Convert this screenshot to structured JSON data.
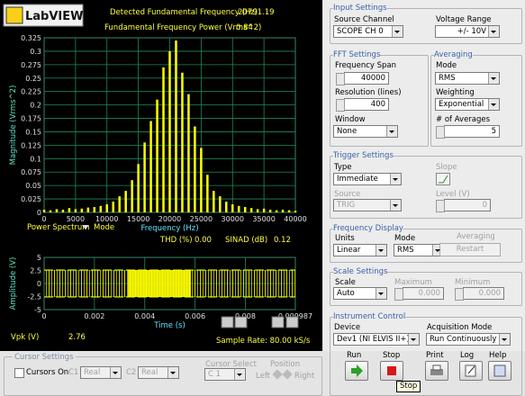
{
  "header": {
    "logo": "LabVIEW",
    "fundamental_frequency_label": "Detected Fundamental Frequency (Hz)",
    "fundamental_frequency": "20791.19",
    "fundamental_power_label": "Fundamental Frequency Power (Vrms^2)",
    "fundamental_power": "0.84"
  },
  "spectrum": {
    "type": "bar",
    "y_label": "Magnitude (Vrms^2)",
    "x_label": "Frequency (Hz)",
    "mode_value": "Power Spectrum",
    "mode_caption": "Mode",
    "color": "#ffff00",
    "grid": true,
    "x": [
      0,
      1000,
      2000,
      3000,
      4000,
      5000,
      6000,
      7000,
      8000,
      9000,
      10000,
      11000,
      12000,
      13000,
      14000,
      15000,
      16000,
      17000,
      18000,
      19000,
      20000,
      21000,
      22000,
      23000,
      24000,
      25000,
      26000,
      27000,
      28000,
      29000,
      30000,
      31000,
      32000,
      33000,
      34000,
      35000,
      36000,
      37000,
      38000,
      39000,
      40000
    ],
    "values": [
      0.005,
      0.004,
      0.006,
      0.005,
      0.008,
      0.006,
      0.007,
      0.009,
      0.01,
      0.012,
      0.015,
      0.02,
      0.03,
      0.04,
      0.06,
      0.09,
      0.13,
      0.17,
      0.21,
      0.27,
      0.3,
      0.32,
      0.26,
      0.22,
      0.16,
      0.12,
      0.07,
      0.04,
      0.03,
      0.02,
      0.015,
      0.012,
      0.01,
      0.008,
      0.006,
      0.007,
      0.005,
      0.004,
      0.005,
      0.004,
      0.003
    ],
    "xlim": [
      0,
      40000
    ],
    "ylim": [
      0,
      0.325
    ],
    "xticks": [
      0,
      5000,
      10000,
      15000,
      20000,
      25000,
      30000,
      35000,
      40000
    ],
    "yticks": [
      0,
      0.025,
      0.05,
      0.075,
      0.1,
      0.125,
      0.15,
      0.175,
      0.2,
      0.225,
      0.25,
      0.275,
      0.3,
      0.325
    ]
  },
  "distortion": {
    "thd_label": "THD (%)",
    "thd": "0.00",
    "sinad_label": "SINAD (dB)",
    "sinad": "0.12"
  },
  "time_plot": {
    "y_label": "Amplitude (V)",
    "x_label": "Time (s)",
    "grid": true,
    "xlim": [
      0,
      0.009987
    ],
    "ylim": [
      -5,
      5
    ],
    "xticks": [
      0,
      0.002,
      0.004,
      0.006,
      0.008,
      0.009987
    ],
    "yticks": [
      -5,
      -2.5,
      0,
      2.5,
      5
    ]
  },
  "vpk_label": "Vpk (V)",
  "vpk": "2.76",
  "sample_rate": "Sample Rate: 80.00 kS/s",
  "cursor_settings": {
    "title": "Cursor Settings",
    "cursors_on": "Cursors On",
    "c1_label": "C1",
    "c1": "Real",
    "c2_label": "C2",
    "c2": "Real",
    "cursor_select_label": "Cursor Select",
    "cursor_select": "C 1",
    "position_label": "Position",
    "left": "Left",
    "right": "Right"
  },
  "input_settings": {
    "title": "Input Settings",
    "source_channel_label": "Source Channel",
    "source_channel": "SCOPE CH 0",
    "voltage_range_label": "Voltage Range",
    "voltage_range": "+/- 10V"
  },
  "fft_settings": {
    "title": "FFT Settings",
    "frequency_span_label": "Frequency Span",
    "frequency_span": "40000",
    "resolution_label": "Resolution (lines)",
    "resolution": "400",
    "window_label": "Window",
    "window": "None"
  },
  "averaging": {
    "title": "Averaging",
    "mode_label": "Mode",
    "mode": "RMS",
    "weighting_label": "Weighting",
    "weighting": "Exponential",
    "averages_label": "# of Averages",
    "averages": "5"
  },
  "trigger_settings": {
    "title": "Trigger Settings",
    "type_label": "Type",
    "type": "Immediate",
    "slope_label": "Slope",
    "source_label": "Source",
    "source": "TRIG",
    "level_label": "Level (V)",
    "level": "0"
  },
  "frequency_display": {
    "title": "Frequency Display",
    "units_label": "Units",
    "units": "Linear",
    "mode_label": "Mode",
    "mode": "RMS",
    "averaging_label": "Averaging",
    "restart": "Restart"
  },
  "scale_settings": {
    "title": "Scale Settings",
    "scale_label": "Scale",
    "scale": "Auto",
    "maximum_label": "Maximum",
    "maximum": "0.000",
    "minimum_label": "Minimum",
    "minimum": "0.000"
  },
  "instrument_control": {
    "title": "Instrument Control",
    "device_label": "Device",
    "device": "Dev1 (NI ELVIS II+)",
    "acquisition_mode_label": "Acquisition Mode",
    "acquisition_mode": "Run Continuously"
  },
  "buttons": {
    "run": "Run",
    "stop": "Stop",
    "print": "Print",
    "log": "Log",
    "help": "Help",
    "tooltip": "Stop"
  }
}
